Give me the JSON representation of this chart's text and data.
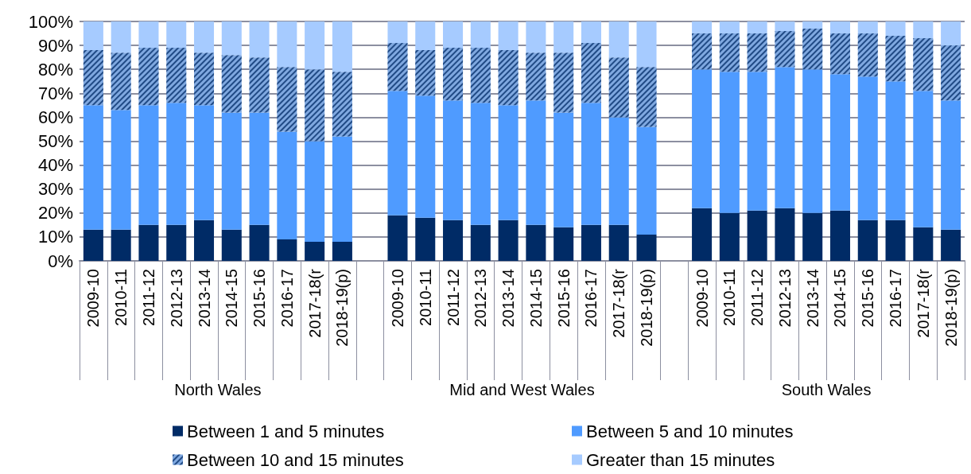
{
  "chart_data": {
    "type": "bar",
    "stacked": true,
    "categories": [
      "2009-10",
      "2010-11",
      "2011-12",
      "2012-13",
      "2013-14",
      "2014-15",
      "2015-16",
      "2016-17",
      "2017-18(r",
      "2018-19(p)",
      null,
      "2009-10",
      "2010-11",
      "2011-12",
      "2012-13",
      "2013-14",
      "2014-15",
      "2015-16",
      "2016-17",
      "2017-18(r",
      "2018-19(p)",
      null,
      "2009-10",
      "2010-11",
      "2011-12",
      "2012-13",
      "2013-14",
      "2014-15",
      "2015-16",
      "2016-17",
      "2017-18(r",
      "2018-19(p)"
    ],
    "series": [
      {
        "name": "Between 1 and 5 minutes",
        "color": "#002b66",
        "values": [
          13,
          13,
          15,
          15,
          17,
          13,
          15,
          9,
          8,
          8,
          null,
          19,
          18,
          17,
          15,
          17,
          15,
          14,
          15,
          15,
          11,
          null,
          22,
          20,
          21,
          22,
          20,
          21,
          17,
          17,
          14,
          13
        ]
      },
      {
        "name": "Between 5 and 10 minutes",
        "color": "#4f9bff",
        "values": [
          52,
          50,
          50,
          51,
          48,
          49,
          47,
          45,
          42,
          44,
          null,
          52,
          51,
          50,
          51,
          48,
          52,
          48,
          51,
          45,
          45,
          null,
          58,
          59,
          58,
          59,
          60,
          57,
          60,
          58,
          57,
          54
        ]
      },
      {
        "name": "Between 10 and 15 minutes",
        "color": "#7fa8e0",
        "values": [
          23,
          24,
          24,
          23,
          22,
          24,
          23,
          27,
          30,
          27,
          null,
          20,
          19,
          22,
          23,
          23,
          20,
          25,
          25,
          25,
          25,
          null,
          15,
          16,
          16,
          15,
          17,
          17,
          18,
          19,
          22,
          23
        ]
      },
      {
        "name": "Greater than 15 minutes",
        "color": "#a6cbff",
        "values": [
          12,
          13,
          11,
          11,
          13,
          14,
          15,
          19,
          20,
          21,
          null,
          9,
          12,
          11,
          11,
          12,
          13,
          13,
          9,
          15,
          19,
          null,
          5,
          5,
          5,
          4,
          3,
          5,
          5,
          6,
          7,
          10
        ]
      }
    ],
    "ylim": [
      0,
      100
    ],
    "yticks": [
      {
        "value": 0,
        "label": "0%"
      },
      {
        "value": 10,
        "label": "10%"
      },
      {
        "value": 20,
        "label": "20%"
      },
      {
        "value": 30,
        "label": "30%"
      },
      {
        "value": 40,
        "label": "40%"
      },
      {
        "value": 50,
        "label": "50%"
      },
      {
        "value": 60,
        "label": "60%"
      },
      {
        "value": 70,
        "label": "70%"
      },
      {
        "value": 80,
        "label": "80%"
      },
      {
        "value": 90,
        "label": "90%"
      },
      {
        "value": 100,
        "label": "100%"
      }
    ],
    "grid": "y",
    "legend": "bottom",
    "annotations": [
      "North Wales",
      "Mid and West Wales",
      "South Wales"
    ]
  }
}
